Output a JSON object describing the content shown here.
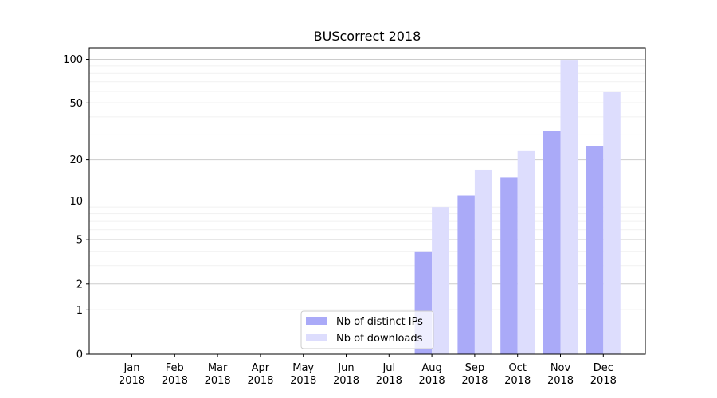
{
  "chart_data": {
    "type": "bar",
    "title": "BUScorrect 2018",
    "xlabel": "",
    "ylabel": "",
    "yscale": "log(1+y)",
    "ylim": [
      0,
      120
    ],
    "yticks": [
      0,
      1,
      2,
      5,
      10,
      20,
      50,
      100
    ],
    "grid": true,
    "legend_position": "bottom-center",
    "categories": [
      [
        "Jan",
        "2018"
      ],
      [
        "Feb",
        "2018"
      ],
      [
        "Mar",
        "2018"
      ],
      [
        "Apr",
        "2018"
      ],
      [
        "May",
        "2018"
      ],
      [
        "Jun",
        "2018"
      ],
      [
        "Jul",
        "2018"
      ],
      [
        "Aug",
        "2018"
      ],
      [
        "Sep",
        "2018"
      ],
      [
        "Oct",
        "2018"
      ],
      [
        "Nov",
        "2018"
      ],
      [
        "Dec",
        "2018"
      ]
    ],
    "series": [
      {
        "name": "Nb of distinct IPs",
        "color": "#aaaaf8",
        "values": [
          0,
          0,
          0,
          0,
          0,
          0,
          0,
          4,
          11,
          15,
          32,
          25
        ]
      },
      {
        "name": "Nb of downloads",
        "color": "#ddddfd",
        "values": [
          0,
          0,
          0,
          0,
          0,
          0,
          0,
          9,
          17,
          23,
          98,
          60
        ]
      }
    ]
  }
}
